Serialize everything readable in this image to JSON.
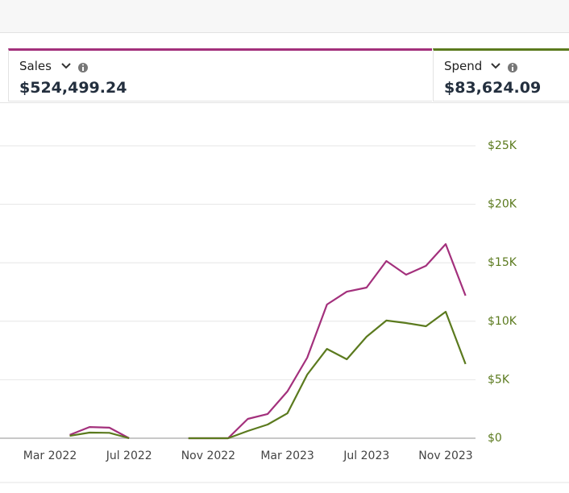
{
  "metrics": [
    {
      "label": "Sales",
      "value": "$524,499.24",
      "color": "#a3307c"
    },
    {
      "label": "Spend",
      "value": "$83,624.09",
      "color": "#5b7a1e"
    }
  ],
  "chart_data": {
    "type": "line",
    "categories": [
      "Mar 2022",
      null,
      null,
      null,
      "Jul 2022",
      null,
      null,
      null,
      "Nov 2022",
      null,
      null,
      null,
      "Mar 2023",
      null,
      null,
      null,
      "Jul 2023",
      null,
      null,
      null,
      "Nov 2023",
      null
    ],
    "series": [
      {
        "name": "Sales",
        "color": "#a3307c",
        "values": [
          null,
          280,
          960,
          900,
          0,
          null,
          null,
          0,
          0,
          0,
          1650,
          2070,
          4000,
          6890,
          11430,
          12530,
          12880,
          15150,
          13980,
          14740,
          16600,
          12190
        ]
      },
      {
        "name": "Spend",
        "color": "#5b7a1e",
        "values": [
          null,
          200,
          480,
          460,
          0,
          null,
          null,
          0,
          0,
          0,
          620,
          1170,
          2130,
          5440,
          7640,
          6750,
          8680,
          10060,
          9850,
          9570,
          10810,
          6340
        ]
      }
    ],
    "ylim": [
      0,
      25000
    ],
    "yticks": [
      {
        "value": 0,
        "label": "$0"
      },
      {
        "value": 5000,
        "label": "$5K"
      },
      {
        "value": 10000,
        "label": "$10K"
      },
      {
        "value": 15000,
        "label": "$15K"
      },
      {
        "value": 20000,
        "label": "$20K"
      },
      {
        "value": 25000,
        "label": "$25K"
      }
    ],
    "ytick_color": "#5b7a1e",
    "grid": true
  }
}
